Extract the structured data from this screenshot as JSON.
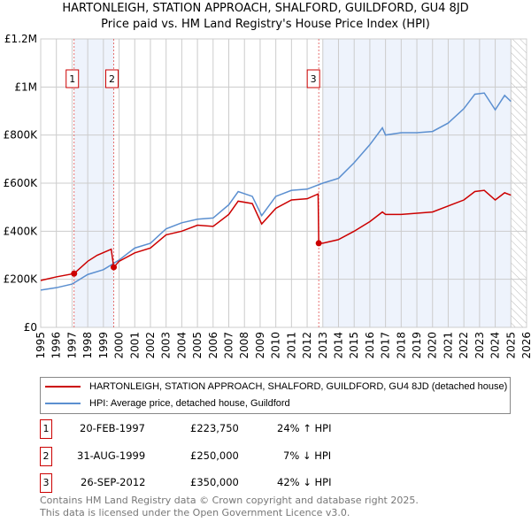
{
  "chart_data": {
    "type": "line",
    "title": "HARTONLEIGH, STATION APPROACH, SHALFORD, GUILDFORD, GU4 8JD",
    "subtitle": "Price paid vs. HM Land Registry's House Price Index (HPI)",
    "xlim": [
      1995,
      2026
    ],
    "ylim": [
      0,
      1200000
    ],
    "xticks": [
      "1995",
      "1996",
      "1997",
      "1998",
      "1999",
      "2000",
      "2001",
      "2002",
      "2003",
      "2004",
      "2005",
      "2006",
      "2007",
      "2008",
      "2009",
      "2010",
      "2011",
      "2012",
      "2013",
      "2014",
      "2015",
      "2016",
      "2017",
      "2018",
      "2019",
      "2020",
      "2021",
      "2022",
      "2023",
      "2024",
      "2025",
      "2026"
    ],
    "yticks": [
      {
        "v": 0,
        "label": "£0"
      },
      {
        "v": 200000,
        "label": "£200K"
      },
      {
        "v": 400000,
        "label": "£400K"
      },
      {
        "v": 600000,
        "label": "£600K"
      },
      {
        "v": 800000,
        "label": "£800K"
      },
      {
        "v": 1000000,
        "label": "£1M"
      },
      {
        "v": 1200000,
        "label": "£1.2M"
      }
    ],
    "grid": true,
    "series": [
      {
        "name": "HARTONLEIGH, STATION APPROACH, SHALFORD, GUILDFORD, GU4 8JD (detached house)",
        "color": "#cc0000",
        "x": [
          1995,
          1996,
          1997.13,
          1998,
          1998.6,
          1999.5,
          1999.66,
          2000,
          2001,
          2002,
          2003,
          2004,
          2005,
          2006,
          2007,
          2007.6,
          2008.5,
          2009.1,
          2010,
          2011,
          2012,
          2012.7,
          2012.74,
          2013,
          2014,
          2015,
          2016,
          2016.8,
          2017,
          2018,
          2019,
          2020,
          2021,
          2022,
          2022.7,
          2023.3,
          2024,
          2024.6,
          2025
        ],
        "y": [
          195000,
          210000,
          223750,
          275000,
          300000,
          325000,
          250000,
          275000,
          310000,
          330000,
          385000,
          400000,
          425000,
          420000,
          470000,
          525000,
          515000,
          430000,
          495000,
          530000,
          535000,
          555000,
          350000,
          350000,
          365000,
          400000,
          440000,
          480000,
          470000,
          470000,
          475000,
          480000,
          505000,
          530000,
          565000,
          570000,
          530000,
          560000,
          550000
        ]
      },
      {
        "name": "HPI: Average price, detached house, Guildford",
        "color": "#5b8fd0",
        "x": [
          1995,
          1996,
          1997,
          1998,
          1999,
          2000,
          2001,
          2002,
          2003,
          2004,
          2005,
          2006,
          2007,
          2007.6,
          2008.5,
          2009.1,
          2010,
          2011,
          2012,
          2013,
          2014,
          2015,
          2016,
          2016.8,
          2017,
          2018,
          2019,
          2020,
          2021,
          2022,
          2022.7,
          2023.3,
          2024,
          2024.6,
          2025
        ],
        "y": [
          155000,
          165000,
          180000,
          220000,
          240000,
          280000,
          330000,
          350000,
          410000,
          435000,
          450000,
          455000,
          510000,
          565000,
          545000,
          465000,
          545000,
          570000,
          575000,
          600000,
          620000,
          685000,
          760000,
          830000,
          800000,
          810000,
          810000,
          815000,
          850000,
          910000,
          970000,
          975000,
          905000,
          965000,
          940000
        ]
      }
    ],
    "sales": [
      {
        "n": "1",
        "x": 1997.13,
        "y": 223750,
        "date": "20-FEB-1997",
        "price": "£223,750",
        "delta": "24% ↑ HPI"
      },
      {
        "n": "2",
        "x": 1999.66,
        "y": 250000,
        "date": "31-AUG-1999",
        "price": "£250,000",
        "delta": "7% ↓ HPI"
      },
      {
        "n": "3",
        "x": 2012.74,
        "y": 350000,
        "date": "26-SEP-2012",
        "price": "£350,000",
        "delta": "42% ↓ HPI"
      }
    ],
    "shaded_ranges": [
      [
        1997.13,
        1999.66
      ],
      [
        2013.0,
        2025.0
      ]
    ],
    "forecast_hatch_from": 2025.0,
    "legend_placement": "bottom"
  },
  "footer": {
    "line1": "Contains HM Land Registry data © Crown copyright and database right 2025.",
    "line2": "This data is licensed under the Open Government Licence v3.0."
  }
}
